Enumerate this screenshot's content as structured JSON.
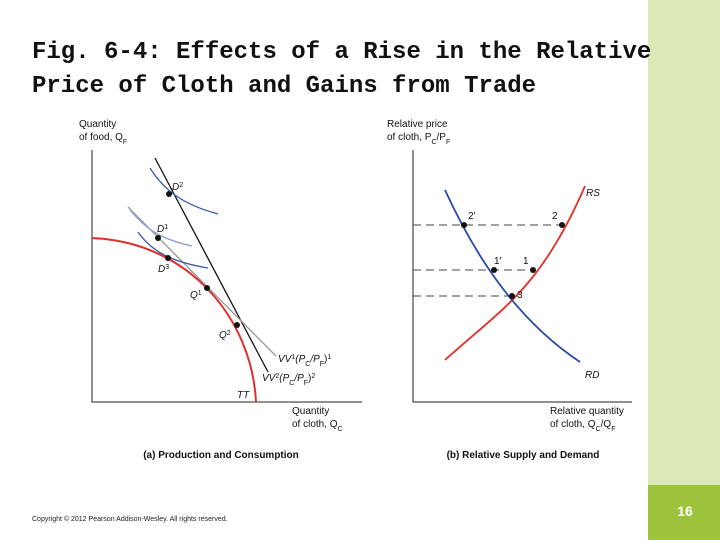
{
  "title": [
    "Fig. 6-4: Effects of a Rise in the Relative",
    "Price of Cloth and Gains from Trade"
  ],
  "panel_a": {
    "y_axis": {
      "line1": "Quantity",
      "line2": [
        "of food, Q",
        "F"
      ]
    },
    "x_axis": {
      "line1": "Quantity",
      "line2": [
        "of cloth, Q",
        "C"
      ]
    },
    "D2": [
      "D",
      "2"
    ],
    "D1": [
      "D",
      "1"
    ],
    "D3": [
      "D",
      "3"
    ],
    "Q1": [
      "Q",
      "1"
    ],
    "Q2": [
      "Q",
      "2"
    ],
    "vv1": [
      "VV",
      "1",
      "(P",
      "C",
      "/P",
      "F",
      ")",
      "1"
    ],
    "vv2": [
      "VV",
      "2",
      "(P",
      "C",
      "/P",
      "F",
      ")",
      "2"
    ],
    "tt": "TT",
    "caption": "(a) Production and Consumption"
  },
  "panel_b": {
    "y_axis": {
      "line1": "Relative price",
      "line2": [
        "of cloth, P",
        "C",
        "/P",
        "F"
      ]
    },
    "x_axis": {
      "line1": "Relative quantity",
      "line2": [
        "of cloth, Q",
        "C",
        "/Q",
        "F"
      ]
    },
    "rs": "RS",
    "rd": "RD",
    "points": [
      "2′",
      "2",
      "1′",
      "1",
      "3"
    ],
    "caption": "(b) Relative Supply and Demand"
  },
  "footer": {
    "copyright": "Copyright © 2012 Pearson Addison-Wesley. All rights reserved.",
    "page": "16"
  }
}
